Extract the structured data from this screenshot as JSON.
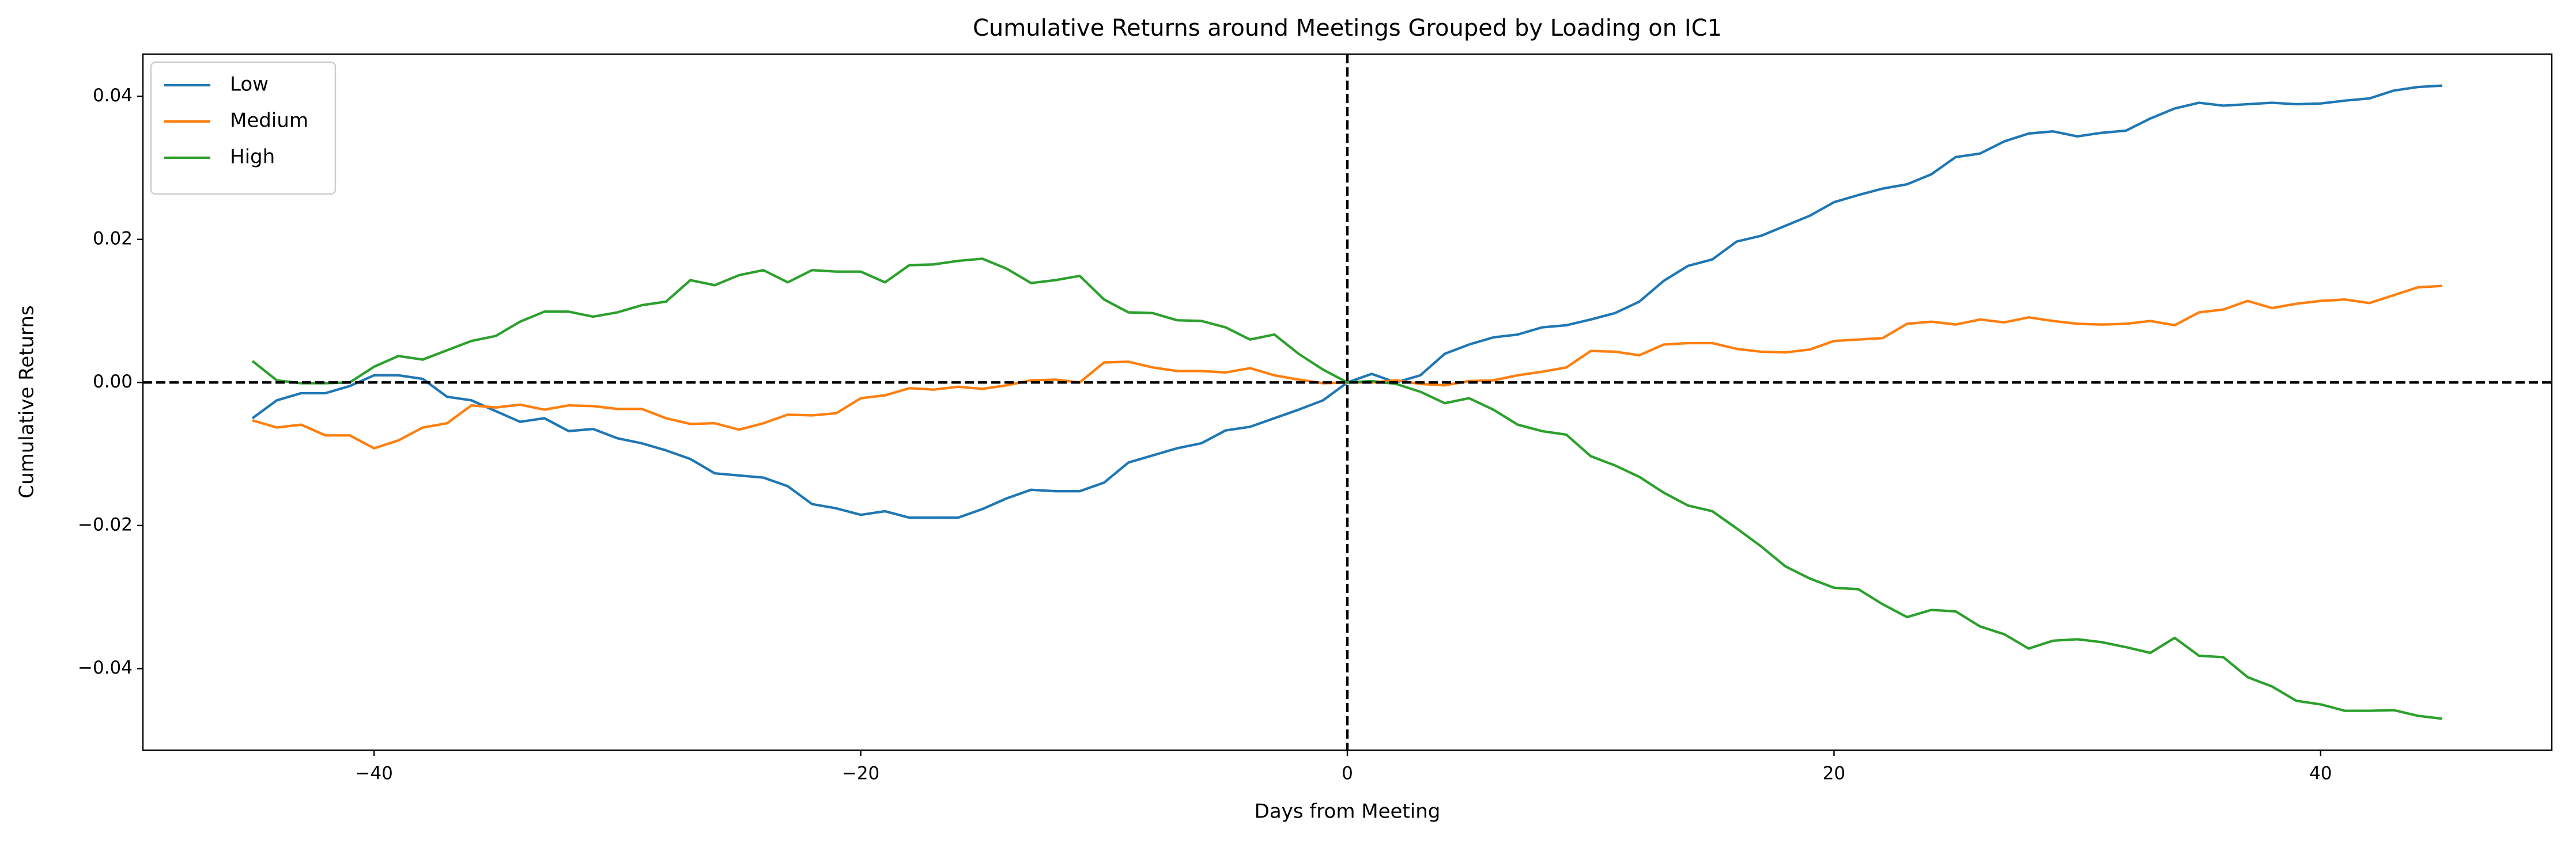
{
  "chart_data": {
    "type": "line",
    "title": "Cumulative Returns around Meetings Grouped by Loading on IC1",
    "xlabel": "Days from Meeting",
    "ylabel": "Cumulative Returns",
    "x": [
      -45,
      -44,
      -43,
      -42,
      -41,
      -40,
      -39,
      -38,
      -37,
      -36,
      -35,
      -34,
      -33,
      -32,
      -31,
      -30,
      -29,
      -28,
      -27,
      -26,
      -25,
      -24,
      -23,
      -22,
      -21,
      -20,
      -19,
      -18,
      -17,
      -16,
      -15,
      -14,
      -13,
      -12,
      -11,
      -10,
      -9,
      -8,
      -7,
      -6,
      -5,
      -4,
      -3,
      -2,
      -1,
      0,
      1,
      2,
      3,
      4,
      5,
      6,
      7,
      8,
      9,
      10,
      11,
      12,
      13,
      14,
      15,
      16,
      17,
      18,
      19,
      20,
      21,
      22,
      23,
      24,
      25,
      26,
      27,
      28,
      29,
      30,
      31,
      32,
      33,
      34,
      35,
      36,
      37,
      38,
      39,
      40,
      41,
      42,
      43,
      44,
      45
    ],
    "series": [
      {
        "name": "Low",
        "color": "#1f77b4",
        "values": [
          -0.005,
          -0.0025,
          -0.0015,
          -0.0015,
          -0.0005,
          0.001,
          0.001,
          0.0005,
          -0.002,
          -0.0025,
          -0.004,
          -0.0055,
          -0.005,
          -0.0068,
          -0.0065,
          -0.0078,
          -0.0085,
          -0.0095,
          -0.0107,
          -0.0127,
          -0.013,
          -0.0133,
          -0.0145,
          -0.017,
          -0.0176,
          -0.0185,
          -0.018,
          -0.0189,
          -0.0189,
          -0.0189,
          -0.0177,
          -0.0162,
          -0.015,
          -0.0152,
          -0.0152,
          -0.014,
          -0.0112,
          -0.0102,
          -0.0092,
          -0.0085,
          -0.0067,
          -0.0062,
          -0.005,
          -0.0038,
          -0.0025,
          0.0,
          0.0012,
          0.0,
          0.001,
          0.004,
          0.0053,
          0.0063,
          0.0067,
          0.0077,
          0.008,
          0.0088,
          0.0097,
          0.0113,
          0.0142,
          0.0163,
          0.0172,
          0.0197,
          0.0205,
          0.0219,
          0.0233,
          0.0252,
          0.0262,
          0.0271,
          0.0277,
          0.0291,
          0.0315,
          0.032,
          0.0337,
          0.0348,
          0.0351,
          0.0344,
          0.0349,
          0.0352,
          0.0369,
          0.0383,
          0.0391,
          0.0387,
          0.0389,
          0.0391,
          0.0389,
          0.039,
          0.0394,
          0.0397,
          0.0408,
          0.0413,
          0.0415
        ]
      },
      {
        "name": "Medium",
        "color": "#ff7f0e",
        "values": [
          -0.0053,
          -0.0063,
          -0.0059,
          -0.0074,
          -0.0074,
          -0.0092,
          -0.0081,
          -0.0063,
          -0.0057,
          -0.0032,
          -0.0035,
          -0.0031,
          -0.0038,
          -0.0032,
          -0.0033,
          -0.0037,
          -0.0037,
          -0.005,
          -0.0058,
          -0.0057,
          -0.0066,
          -0.0057,
          -0.0045,
          -0.0046,
          -0.0043,
          -0.0022,
          -0.0018,
          -0.0008,
          -0.001,
          -0.0006,
          -0.0009,
          -0.0004,
          0.0003,
          0.0004,
          0.0,
          0.0028,
          0.0029,
          0.0021,
          0.0016,
          0.0016,
          0.0014,
          0.002,
          0.001,
          0.0004,
          -0.0001,
          0.0,
          0.0,
          0.0003,
          -0.0002,
          -0.0004,
          0.0002,
          0.0003,
          0.001,
          0.0015,
          0.0021,
          0.0044,
          0.0043,
          0.0038,
          0.0053,
          0.0055,
          0.0055,
          0.0047,
          0.0043,
          0.0042,
          0.0046,
          0.0058,
          0.006,
          0.0062,
          0.0082,
          0.0085,
          0.0081,
          0.0088,
          0.0084,
          0.0091,
          0.0086,
          0.0082,
          0.0081,
          0.0082,
          0.0086,
          0.008,
          0.0098,
          0.0102,
          0.0114,
          0.0104,
          0.011,
          0.0114,
          0.0116,
          0.0111,
          0.0122,
          0.0133,
          0.0135
        ]
      },
      {
        "name": "High",
        "color": "#2ca02c",
        "values": [
          0.003,
          0.0003,
          -0.0001,
          -0.0001,
          0.0,
          0.0022,
          0.0037,
          0.0032,
          0.0045,
          0.0058,
          0.0065,
          0.0085,
          0.0099,
          0.0099,
          0.0092,
          0.0098,
          0.0108,
          0.0113,
          0.0143,
          0.0136,
          0.015,
          0.0157,
          0.014,
          0.0157,
          0.0155,
          0.0155,
          0.014,
          0.0164,
          0.0165,
          0.017,
          0.0173,
          0.0159,
          0.0139,
          0.0143,
          0.0149,
          0.0116,
          0.0098,
          0.0097,
          0.0087,
          0.0086,
          0.0077,
          0.006,
          0.0067,
          0.004,
          0.0018,
          0.0,
          0.0002,
          -0.0002,
          -0.0013,
          -0.0029,
          -0.0022,
          -0.0038,
          -0.0059,
          -0.0068,
          -0.0073,
          -0.0103,
          -0.0116,
          -0.0132,
          -0.0154,
          -0.0172,
          -0.018,
          -0.0204,
          -0.0229,
          -0.0257,
          -0.0274,
          -0.0287,
          -0.0289,
          -0.031,
          -0.0328,
          -0.0318,
          -0.032,
          -0.0341,
          -0.0352,
          -0.0372,
          -0.0361,
          -0.0359,
          -0.0363,
          -0.037,
          -0.0378,
          -0.0357,
          -0.0382,
          -0.0384,
          -0.0412,
          -0.0425,
          -0.0445,
          -0.045,
          -0.0459,
          -0.0459,
          -0.0458,
          -0.0466,
          -0.047
        ]
      }
    ],
    "xlim": [
      -49.5,
      49.5
    ],
    "ylim": [
      -0.0514,
      0.0459
    ],
    "xticks": [
      {
        "value": -40,
        "label": "−40"
      },
      {
        "value": -20,
        "label": "−20"
      },
      0,
      20,
      40
    ],
    "yticks": [
      {
        "value": -0.04,
        "label": "−0.04"
      },
      {
        "value": -0.02,
        "label": "−0.02"
      },
      {
        "value": 0,
        "label": "0.00"
      },
      0.02,
      0.04
    ],
    "hline": 0,
    "vline": 0,
    "legend": "upper left"
  }
}
